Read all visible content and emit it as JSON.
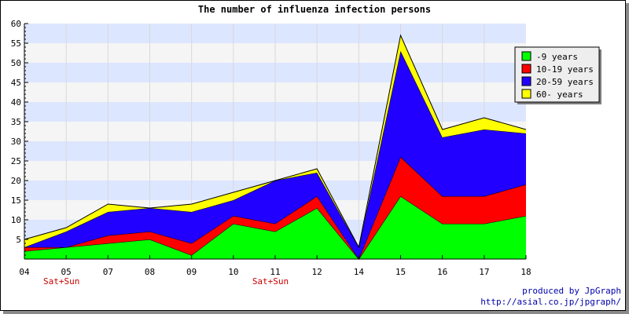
{
  "chart_data": {
    "type": "area",
    "stacked": true,
    "title": "The number of influenza infection persons",
    "categories": [
      "04",
      "05",
      "07",
      "08",
      "09",
      "10",
      "11",
      "12",
      "14",
      "15",
      "16",
      "17",
      "18"
    ],
    "category_notes": [
      {
        "category": "05",
        "text": "Sat+Sun"
      },
      {
        "category": "11",
        "text": "Sat+Sun"
      }
    ],
    "ylim": [
      0,
      60
    ],
    "yticks": [
      5,
      10,
      15,
      20,
      25,
      30,
      35,
      40,
      45,
      50,
      55,
      60
    ],
    "grid": true,
    "legend_position": "top-right",
    "series": [
      {
        "name": "-9 years",
        "color": "#00ff00",
        "values": [
          2,
          3,
          4,
          5,
          1,
          9,
          7,
          13,
          0,
          16,
          9,
          9,
          11
        ]
      },
      {
        "name": "10-19 years",
        "color": "#ff0000",
        "values": [
          1,
          0,
          2,
          2,
          3,
          2,
          2,
          3,
          0,
          10,
          7,
          7,
          8
        ]
      },
      {
        "name": "20-59 years",
        "color": "#2200ff",
        "values": [
          0,
          4,
          6,
          6,
          8,
          4,
          11,
          6,
          3,
          27,
          15,
          17,
          13
        ]
      },
      {
        "name": "60- years",
        "color": "#ffff00",
        "values": [
          2,
          1,
          2,
          0,
          2,
          2,
          0,
          1,
          0,
          4,
          2,
          3,
          1
        ]
      }
    ]
  },
  "footer": {
    "credit_line1": "produced by JpGraph",
    "credit_line2": "http://asial.co.jp/jpgraph/"
  }
}
